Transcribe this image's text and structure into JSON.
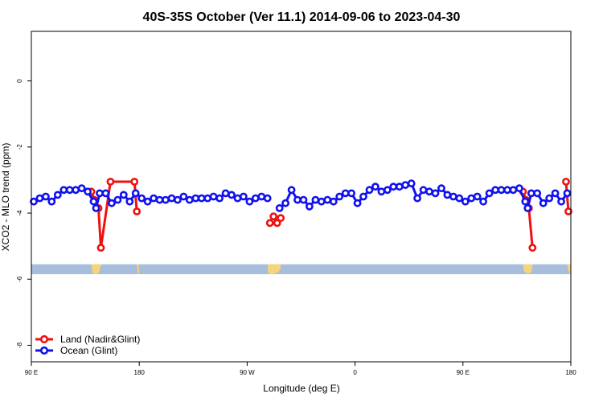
{
  "chart_data": {
    "type": "line",
    "title": "40S-35S October (Ver 11.1)   2014-09-06 to 2023-04-30",
    "xlabel": "Longitude (deg E)",
    "ylabel": "XCO2 - MLO trend (ppm)",
    "xlim": [
      90,
      540
    ],
    "ylim": [
      -8.5,
      1.5
    ],
    "x_ticks": [
      {
        "value": 90,
        "label": "90 E"
      },
      {
        "value": 180,
        "label": "180"
      },
      {
        "value": 270,
        "label": "90 W"
      },
      {
        "value": 360,
        "label": "0"
      },
      {
        "value": 450,
        "label": "90 E"
      },
      {
        "value": 540,
        "label": "180"
      }
    ],
    "y_ticks": [
      {
        "value": 0,
        "label": "0"
      },
      {
        "value": -2,
        "label": "-2"
      },
      {
        "value": -4,
        "label": "-4"
      },
      {
        "value": -6,
        "label": "-6"
      },
      {
        "value": -8,
        "label": "-8"
      }
    ],
    "grid": false,
    "legend_position": "bottom-left",
    "land_strip": {
      "y_top": -5.55,
      "y_bottom": -5.85,
      "ocean_color": "#a6bddb",
      "land_color": "#f6d57a"
    },
    "series": [
      {
        "name": "Land (Nadir&Glint)",
        "color": "#ee1111",
        "segments": [
          [
            [
              140,
              -3.35
            ],
            [
              142.5,
              -3.6
            ],
            [
              146,
              -3.85
            ],
            [
              148,
              -5.05
            ],
            [
              156,
              -3.05
            ],
            [
              176,
              -3.05
            ],
            [
              178,
              -3.95
            ]
          ],
          [
            [
              289,
              -4.3
            ],
            [
              292,
              -4.1
            ],
            [
              295,
              -4.3
            ],
            [
              298,
              -4.15
            ]
          ],
          [
            [
              500,
              -3.35
            ],
            [
              502.5,
              -3.6
            ],
            [
              505,
              -3.85
            ],
            [
              508,
              -5.05
            ]
          ],
          [
            [
              536,
              -3.05
            ],
            [
              538,
              -3.95
            ]
          ]
        ]
      },
      {
        "name": "Ocean (Glint)",
        "color": "#1111ee",
        "segments": [
          [
            [
              92,
              -3.65
            ],
            [
              97,
              -3.55
            ],
            [
              102,
              -3.5
            ],
            [
              107,
              -3.65
            ],
            [
              112,
              -3.45
            ],
            [
              117,
              -3.3
            ],
            [
              122,
              -3.3
            ],
            [
              127,
              -3.3
            ],
            [
              132,
              -3.25
            ],
            [
              137,
              -3.35
            ],
            [
              142,
              -3.65
            ],
            [
              144,
              -3.85
            ],
            [
              147,
              -3.4
            ],
            [
              152,
              -3.4
            ],
            [
              157,
              -3.7
            ],
            [
              162,
              -3.6
            ],
            [
              167,
              -3.45
            ],
            [
              172,
              -3.65
            ],
            [
              177,
              -3.4
            ],
            [
              182,
              -3.55
            ],
            [
              187,
              -3.65
            ],
            [
              192,
              -3.55
            ],
            [
              197,
              -3.6
            ],
            [
              202,
              -3.6
            ],
            [
              207,
              -3.55
            ],
            [
              212,
              -3.6
            ],
            [
              217,
              -3.5
            ],
            [
              222,
              -3.6
            ],
            [
              227,
              -3.55
            ],
            [
              232,
              -3.55
            ],
            [
              237,
              -3.55
            ],
            [
              242,
              -3.5
            ],
            [
              247,
              -3.55
            ],
            [
              252,
              -3.4
            ],
            [
              257,
              -3.45
            ],
            [
              262,
              -3.55
            ],
            [
              267,
              -3.5
            ],
            [
              272,
              -3.65
            ],
            [
              277,
              -3.55
            ],
            [
              282,
              -3.5
            ],
            [
              287,
              -3.55
            ]
          ],
          [
            [
              297,
              -3.85
            ],
            [
              302,
              -3.7
            ],
            [
              307,
              -3.3
            ],
            [
              312,
              -3.6
            ],
            [
              317,
              -3.6
            ],
            [
              322,
              -3.8
            ],
            [
              327,
              -3.6
            ],
            [
              332,
              -3.65
            ],
            [
              337,
              -3.6
            ],
            [
              342,
              -3.65
            ],
            [
              347,
              -3.5
            ],
            [
              352,
              -3.4
            ],
            [
              357,
              -3.4
            ],
            [
              362,
              -3.7
            ],
            [
              367,
              -3.5
            ],
            [
              372,
              -3.3
            ],
            [
              377,
              -3.2
            ],
            [
              382,
              -3.35
            ],
            [
              387,
              -3.3
            ],
            [
              392,
              -3.2
            ],
            [
              397,
              -3.2
            ],
            [
              402,
              -3.15
            ],
            [
              407,
              -3.1
            ],
            [
              412,
              -3.55
            ],
            [
              417,
              -3.3
            ],
            [
              422,
              -3.35
            ],
            [
              427,
              -3.4
            ],
            [
              432,
              -3.25
            ],
            [
              437,
              -3.45
            ],
            [
              442,
              -3.5
            ],
            [
              447,
              -3.55
            ],
            [
              452,
              -3.65
            ],
            [
              457,
              -3.55
            ],
            [
              462,
              -3.5
            ],
            [
              467,
              -3.65
            ],
            [
              472,
              -3.4
            ],
            [
              477,
              -3.3
            ],
            [
              482,
              -3.3
            ],
            [
              487,
              -3.3
            ],
            [
              492,
              -3.3
            ],
            [
              497,
              -3.25
            ],
            [
              502,
              -3.65
            ],
            [
              504,
              -3.85
            ],
            [
              507,
              -3.4
            ],
            [
              512,
              -3.4
            ],
            [
              517,
              -3.7
            ],
            [
              522,
              -3.55
            ],
            [
              527,
              -3.4
            ],
            [
              532,
              -3.65
            ],
            [
              537,
              -3.4
            ]
          ]
        ]
      }
    ]
  }
}
